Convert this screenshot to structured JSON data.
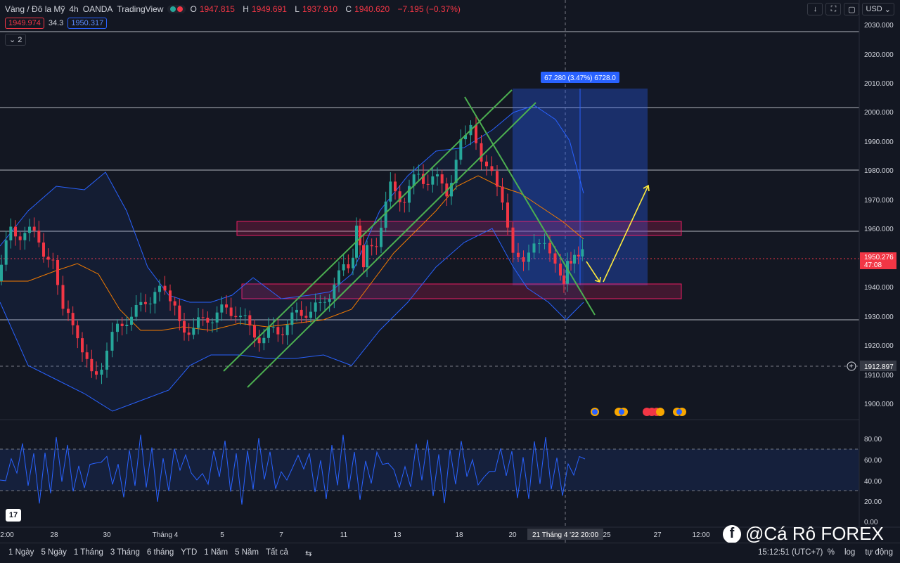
{
  "header": {
    "symbol": "Vàng / Đô la Mỹ",
    "interval": "4h",
    "broker": "OANDA",
    "platform": "TradingView",
    "o_label": "O",
    "o": "1947.815",
    "h_label": "H",
    "h": "1949.691",
    "l_label": "L",
    "l": "1937.910",
    "c_label": "C",
    "c": "1940.620",
    "change": "−7.195 (−0.37%)",
    "bid": "1949.974",
    "spread": "34.3",
    "ask": "1950.317",
    "indicators_collapsed": "2"
  },
  "toolbar": {
    "currency": "USD"
  },
  "price_axis": {
    "ticks": [
      "2030.000",
      "2020.000",
      "2010.000",
      "2000.000",
      "1990.000",
      "1980.000",
      "1970.000",
      "1960.000",
      "1940.000",
      "1930.000",
      "1920.000",
      "1910.000",
      "1900.000"
    ],
    "current_price": "1950.276",
    "countdown": "47:08",
    "crosshair_price": "1912.897"
  },
  "osc_axis": {
    "ticks": [
      "80.00",
      "60.00",
      "40.00",
      "20.00",
      "0.00"
    ]
  },
  "time_axis": {
    "labels": [
      "2:00",
      "28",
      "30",
      "Tháng 4",
      "5",
      "7",
      "11",
      "13",
      "18",
      "20",
      "25",
      "27",
      "12:00"
    ],
    "crosshair_label": "21 Tháng 4 '22   20:00"
  },
  "measure": {
    "label": "67.280 (3.47%) 6728.0"
  },
  "bottom": {
    "ranges": [
      "1 Ngày",
      "5 Ngày",
      "1 Tháng",
      "3 Tháng",
      "6 tháng",
      "YTD",
      "1 Năm",
      "5 Năm",
      "Tất cả"
    ],
    "clock": "15:12:51 (UTC+7)",
    "percent": "%",
    "log": "log",
    "auto": "tự động"
  },
  "watermark": "@Cá Rô FOREX",
  "tv_logo": "17",
  "colors": {
    "bull": "#26a69a",
    "bear": "#f23645",
    "band": "#2962ff",
    "ma": "#f57c00",
    "trend": "#4caf50",
    "arrow": "#ffeb3b"
  }
}
